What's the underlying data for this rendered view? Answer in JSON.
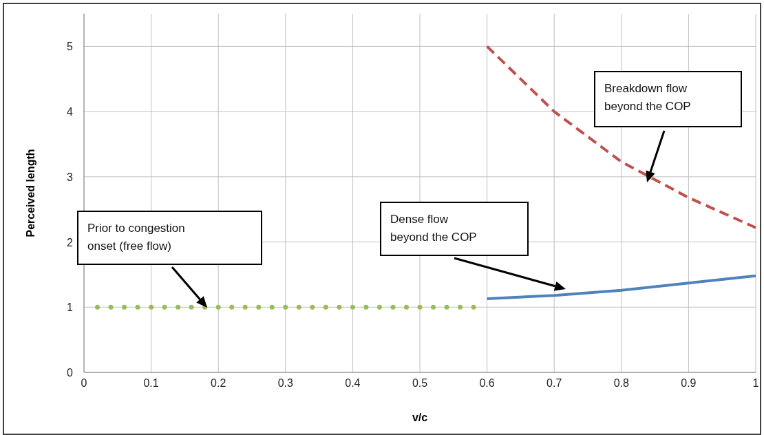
{
  "chart_data": {
    "type": "line",
    "xlabel": "v/c",
    "ylabel": "Perceived length",
    "xlim": [
      0,
      1
    ],
    "ylim": [
      0,
      5.5
    ],
    "xticks": [
      0,
      0.1,
      0.2,
      0.3,
      0.4,
      0.5,
      0.6,
      0.7,
      0.8,
      0.9,
      1
    ],
    "yticks": [
      0,
      1,
      2,
      3,
      4,
      5
    ],
    "grid": true,
    "series": [
      {
        "type": "scatter",
        "marker": "circle",
        "color": "#9bbb59",
        "x": [
          0.02,
          0.04,
          0.06,
          0.08,
          0.1,
          0.12,
          0.14,
          0.16,
          0.18,
          0.2,
          0.22,
          0.24,
          0.26,
          0.28,
          0.3,
          0.32,
          0.34,
          0.36,
          0.38,
          0.4,
          0.42,
          0.44,
          0.46,
          0.48,
          0.5,
          0.52,
          0.54,
          0.56,
          0.58
        ],
        "values": [
          1,
          1,
          1,
          1,
          1,
          1,
          1,
          1,
          1,
          1,
          1,
          1,
          1,
          1,
          1,
          1,
          1,
          1,
          1,
          1,
          1,
          1,
          1,
          1,
          1,
          1,
          1,
          1,
          1
        ]
      },
      {
        "line_style": "solid",
        "color": "#4f81bd",
        "x": [
          0.6,
          0.7,
          0.8,
          0.9,
          1
        ],
        "values": [
          1.13,
          1.18,
          1.26,
          1.37,
          1.48
        ]
      },
      {
        "line_style": "dashed",
        "color": "#c0504d",
        "x": [
          0.6,
          0.7,
          0.8,
          0.9,
          1
        ],
        "values": [
          5.0,
          4.0,
          3.23,
          2.68,
          2.22
        ]
      }
    ],
    "annotations": [
      "Prior to congestion onset (free flow)",
      "Dense flow beyond the COP",
      "Breakdown flow beyond the COP"
    ]
  }
}
